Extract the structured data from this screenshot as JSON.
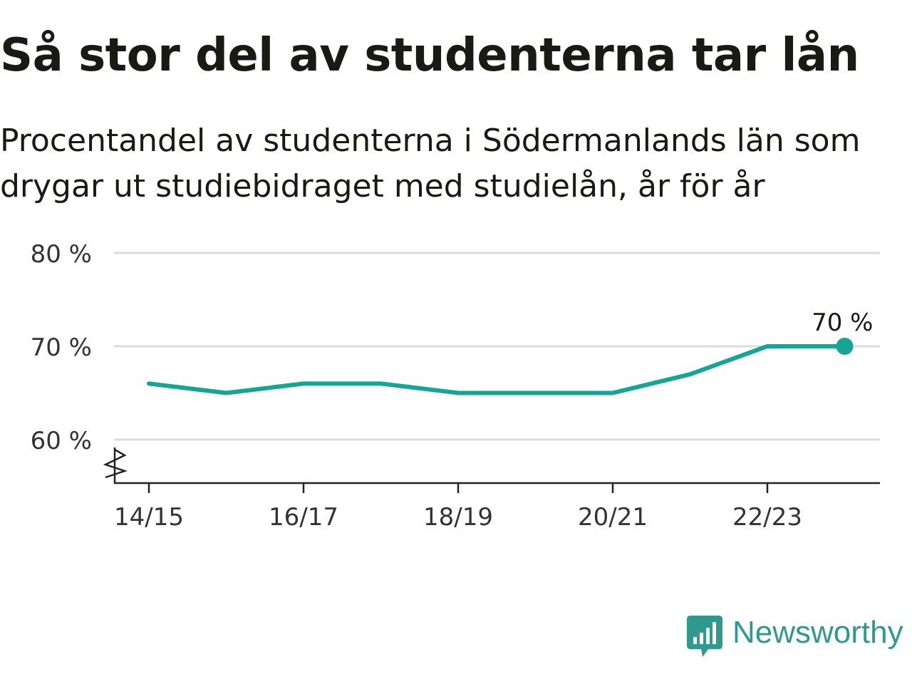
{
  "title": "Så stor del av studenterna tar lån",
  "subtitle": "Procentandel av studenterna i Södermanlands län som drygar ut studiebidraget med studielån, år för år",
  "brand": {
    "name": "Newsworthy",
    "color": "#2e9a8e",
    "icon": "bar-chart-speech-bubble-icon"
  },
  "chart_data": {
    "type": "line",
    "x": [
      "14/15",
      "15/16",
      "16/17",
      "17/18",
      "18/19",
      "19/20",
      "20/21",
      "21/22",
      "22/23",
      "23/24"
    ],
    "x_tick_labels": [
      "14/15",
      "16/17",
      "18/19",
      "20/21",
      "22/23"
    ],
    "series": [
      {
        "values": [
          66,
          65,
          66,
          66,
          65,
          65,
          65,
          67,
          70,
          70
        ]
      }
    ],
    "y_ticks": [
      60,
      70,
      80
    ],
    "y_tick_labels": [
      "60 %",
      "70 %",
      "80 %"
    ],
    "ylim": [
      55,
      80
    ],
    "y_axis_break": true,
    "grid": true,
    "line_color": "#14a595",
    "end_label": "70 %"
  }
}
